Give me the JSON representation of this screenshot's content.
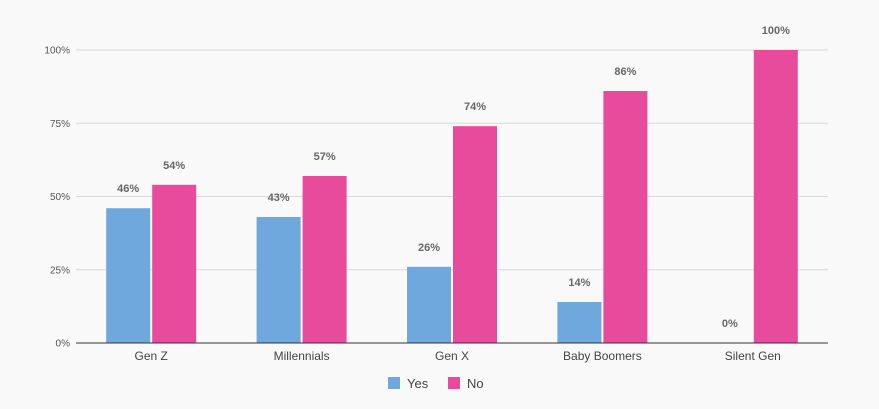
{
  "chart_data": {
    "type": "bar",
    "title": "",
    "xlabel": "",
    "ylabel": "",
    "categories": [
      "Gen Z",
      "Millennials",
      "Gen X",
      "Baby Boomers",
      "Silent Gen"
    ],
    "series": [
      {
        "name": "Yes",
        "color": "#6fa8dc",
        "values": [
          46,
          43,
          26,
          14,
          0
        ]
      },
      {
        "name": "No",
        "color": "#e84a9c",
        "values": [
          54,
          57,
          74,
          86,
          100
        ]
      }
    ],
    "data_labels": [
      [
        "46%",
        "43%",
        "26%",
        "14%",
        "0%"
      ],
      [
        "54%",
        "57%",
        "74%",
        "86%",
        "100%"
      ]
    ],
    "ylim": [
      0,
      100
    ],
    "yticks": [
      0,
      25,
      50,
      75,
      100
    ],
    "ytick_labels": [
      "0%",
      "25%",
      "50%",
      "75%",
      "100%"
    ],
    "grid": true,
    "legend": "bottom-center",
    "colors": {
      "grid": "#d9d9d9",
      "axis": "#333333"
    }
  }
}
